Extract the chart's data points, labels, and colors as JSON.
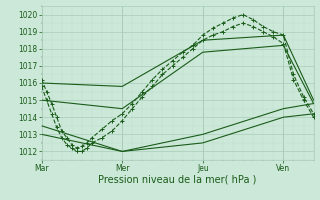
{
  "xlabel": "Pression niveau de la mer( hPa )",
  "ylim": [
    1011.5,
    1020.5
  ],
  "yticks": [
    1012,
    1013,
    1014,
    1015,
    1016,
    1017,
    1018,
    1019,
    1020
  ],
  "xtick_labels": [
    "Mar",
    "Mer",
    "Jeu",
    "Ven"
  ],
  "xtick_positions": [
    0,
    48,
    96,
    144
  ],
  "xlim": [
    0,
    162
  ],
  "bg_color": "#cce8d8",
  "grid_major_color": "#aaccbb",
  "grid_minor_color": "#bbddd0",
  "line_color": "#1a5c1a",
  "lines": [
    {
      "x": [
        0,
        3,
        6,
        9,
        12,
        15,
        18,
        21,
        24,
        27,
        30,
        36,
        42,
        48,
        54,
        60,
        66,
        72,
        78,
        84,
        90,
        96,
        102,
        108,
        114,
        120,
        126,
        132,
        138,
        144,
        150,
        156,
        162
      ],
      "y": [
        1016.2,
        1015.5,
        1014.8,
        1014.0,
        1013.2,
        1012.8,
        1012.4,
        1012.2,
        1012.3,
        1012.5,
        1012.8,
        1013.3,
        1013.8,
        1014.2,
        1014.8,
        1015.5,
        1016.2,
        1016.8,
        1017.3,
        1017.8,
        1018.2,
        1018.8,
        1019.2,
        1019.5,
        1019.8,
        1020.0,
        1019.7,
        1019.3,
        1019.0,
        1018.8,
        1016.5,
        1015.2,
        1014.2
      ],
      "style": "dashed",
      "marker": "+"
    },
    {
      "x": [
        0,
        3,
        6,
        9,
        12,
        15,
        18,
        21,
        24,
        27,
        30,
        36,
        42,
        48,
        54,
        60,
        66,
        72,
        78,
        84,
        90,
        96,
        102,
        108,
        114,
        120,
        126,
        132,
        138,
        144,
        150,
        156,
        162
      ],
      "y": [
        1015.8,
        1015.0,
        1014.2,
        1013.4,
        1012.8,
        1012.4,
        1012.2,
        1012.0,
        1012.0,
        1012.2,
        1012.5,
        1012.8,
        1013.2,
        1013.8,
        1014.5,
        1015.2,
        1015.8,
        1016.5,
        1017.0,
        1017.5,
        1018.0,
        1018.5,
        1018.8,
        1019.0,
        1019.3,
        1019.5,
        1019.3,
        1019.0,
        1018.7,
        1018.3,
        1016.2,
        1015.0,
        1014.0
      ],
      "style": "dashed",
      "marker": "+"
    },
    {
      "x": [
        0,
        48,
        96,
        144,
        162
      ],
      "y": [
        1016.0,
        1015.8,
        1018.5,
        1018.8,
        1015.0
      ],
      "style": "solid",
      "marker": null
    },
    {
      "x": [
        0,
        48,
        96,
        144,
        162
      ],
      "y": [
        1015.0,
        1014.5,
        1017.8,
        1018.2,
        1014.8
      ],
      "style": "solid",
      "marker": null
    },
    {
      "x": [
        0,
        48,
        96,
        144,
        162
      ],
      "y": [
        1013.5,
        1012.0,
        1013.0,
        1014.5,
        1014.8
      ],
      "style": "solid",
      "marker": null
    },
    {
      "x": [
        0,
        48,
        96,
        144,
        162
      ],
      "y": [
        1013.0,
        1012.0,
        1012.5,
        1014.0,
        1014.2
      ],
      "style": "solid",
      "marker": null
    }
  ]
}
